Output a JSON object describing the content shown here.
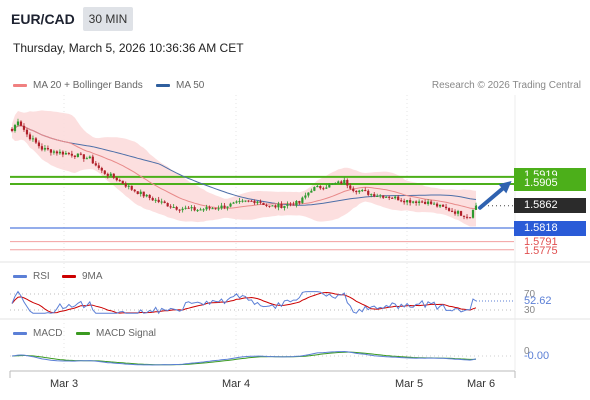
{
  "header": {
    "symbol": "EUR/CAD",
    "timeframe": "30 MIN",
    "datetime": "Thursday, March 5, 2026 10:36:36 AM CET"
  },
  "legend_main": [
    {
      "label": "MA 20 + Bollinger Bands",
      "color": "#f08080"
    },
    {
      "label": "MA 50",
      "color": "#2f5f9e"
    }
  ],
  "credit": "Research © 2026 Trading Central",
  "price_labels": {
    "resistance_1": "1.5919",
    "resistance_2": "1.5905",
    "current": "1.5862",
    "pivot": "1.5818",
    "support_1": "1.5791",
    "support_2": "1.5775"
  },
  "legend_rsi": [
    {
      "label": "RSI",
      "color": "#5b7fd6"
    },
    {
      "label": "9MA",
      "color": "#cc0000"
    }
  ],
  "rsi_labels": {
    "upper": "70",
    "value": "52.62",
    "lower": "30"
  },
  "legend_macd": [
    {
      "label": "MACD",
      "color": "#5b7fd6"
    },
    {
      "label": "MACD Signal",
      "color": "#3a9a20"
    }
  ],
  "macd_labels": {
    "zero": "0",
    "value": "-0.00"
  },
  "colors": {
    "resistance": "#4caf1a",
    "pivot": "#2a5bd7",
    "support": "#e05050",
    "current": "#2b2b2b",
    "candle_up": "#2e9a2e",
    "candle_down": "#b0202a",
    "band_fill": "#fbd9d9",
    "arrow": "#2f62b0"
  },
  "chart_data": {
    "type": "candlestick",
    "x_ticks": [
      "Mar 3",
      "Mar 4",
      "Mar 5",
      "Mar 6"
    ],
    "levels": {
      "resistance": [
        1.5919,
        1.5905
      ],
      "pivot": 1.5818,
      "support": [
        1.5791,
        1.5775
      ],
      "last": 1.5862
    },
    "y_range": [
      1.576,
      1.604
    ],
    "close_keypoints": [
      [
        0,
        1.601
      ],
      [
        2,
        1.6032
      ],
      [
        5,
        1.6003
      ],
      [
        10,
        1.5975
      ],
      [
        15,
        1.5968
      ],
      [
        20,
        1.5964
      ],
      [
        26,
        1.5955
      ],
      [
        30,
        1.593
      ],
      [
        35,
        1.5915
      ],
      [
        40,
        1.5895
      ],
      [
        45,
        1.588
      ],
      [
        50,
        1.5868
      ],
      [
        55,
        1.5858
      ],
      [
        62,
        1.5854
      ],
      [
        70,
        1.586
      ],
      [
        78,
        1.587
      ],
      [
        82,
        1.5872
      ],
      [
        86,
        1.586
      ],
      [
        90,
        1.5862
      ],
      [
        96,
        1.5868
      ],
      [
        100,
        1.5895
      ],
      [
        104,
        1.59
      ],
      [
        108,
        1.5905
      ],
      [
        111,
        1.591
      ],
      [
        114,
        1.5895
      ],
      [
        120,
        1.5885
      ],
      [
        126,
        1.588
      ],
      [
        132,
        1.5872
      ],
      [
        138,
        1.587
      ],
      [
        144,
        1.5858
      ],
      [
        150,
        1.5846
      ],
      [
        153,
        1.584
      ],
      [
        154,
        1.5858
      ],
      [
        155,
        1.5862
      ]
    ],
    "rsi": {
      "overbought": 70,
      "oversold": 30,
      "last": 52.62
    },
    "macd": {
      "last": -0.0
    }
  }
}
